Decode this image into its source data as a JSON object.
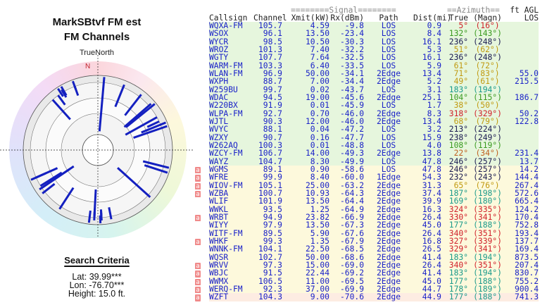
{
  "left": {
    "title1": "MarkSBtvf FM est",
    "title2": "FM Channels",
    "true_north": "TrueNorth",
    "north_label": "N",
    "criteria_title": "Search Criteria",
    "lat": "Lat: 39.99***",
    "lon": "Lon: -76.70***",
    "height": "Height: 15.0 ft."
  },
  "table": {
    "group_signal": "========Signal========",
    "group_azimuth": "==Azimuth==",
    "group_agl": "ft AGL",
    "headers": [
      "Callsign",
      "Channel",
      "Xmit(kW)",
      "Rx(dBm)",
      "Path",
      "Dist(mi)",
      "True",
      "(Magn)",
      "LOS"
    ],
    "badge_label": "a",
    "colors": {
      "green_row": "#e6f6dd",
      "yellow_row": "#fdf9dc",
      "pink_row": "#fdece2",
      "text": "#1a22c8",
      "badge": "#f08a8a"
    },
    "rows": [
      {
        "cs": "WQXA-FM",
        "ch": "105.7",
        "kw": "4.59",
        "rx": "-9.8",
        "path": "LOS",
        "dist": "0.9",
        "tru": "5°",
        "mag": "(16°)",
        "los": "",
        "badge": false,
        "bg": "g"
      },
      {
        "cs": "WSOX",
        "ch": "96.1",
        "kw": "13.50",
        "rx": "-23.4",
        "path": "LOS",
        "dist": "8.4",
        "tru": "132°",
        "mag": "(143°)",
        "los": "",
        "badge": false,
        "bg": "g"
      },
      {
        "cs": "WYCR",
        "ch": "98.5",
        "kw": "10.50",
        "rx": "-30.3",
        "path": "LOS",
        "dist": "16.1",
        "tru": "236°",
        "mag": "(248°)",
        "los": "",
        "badge": false,
        "bg": "g"
      },
      {
        "cs": "WROZ",
        "ch": "101.3",
        "kw": "7.40",
        "rx": "-32.2",
        "path": "LOS",
        "dist": "5.3",
        "tru": "51°",
        "mag": "(62°)",
        "los": "",
        "badge": false,
        "bg": "g"
      },
      {
        "cs": "WGTY",
        "ch": "107.7",
        "kw": "7.64",
        "rx": "-32.5",
        "path": "LOS",
        "dist": "16.1",
        "tru": "236°",
        "mag": "(248°)",
        "los": "",
        "badge": false,
        "bg": "g"
      },
      {
        "cs": "WARM-FM",
        "ch": "103.3",
        "kw": "6.40",
        "rx": "-33.5",
        "path": "LOS",
        "dist": "5.9",
        "tru": "61°",
        "mag": "(72°)",
        "los": "",
        "badge": false,
        "bg": "g"
      },
      {
        "cs": "WLAN-FM",
        "ch": "96.9",
        "kw": "50.00",
        "rx": "-34.1",
        "path": "2Edge",
        "dist": "13.4",
        "tru": "71°",
        "mag": "(83°)",
        "los": "55.0",
        "badge": false,
        "bg": "g"
      },
      {
        "cs": "WXPH",
        "ch": "88.7",
        "kw": "7.00",
        "rx": "-34.4",
        "path": "2Edge",
        "dist": "5.2",
        "tru": "49°",
        "mag": "(61°)",
        "los": "215.5",
        "badge": false,
        "bg": "g"
      },
      {
        "cs": "W259BU",
        "ch": "99.7",
        "kw": "0.02",
        "rx": "-43.7",
        "path": "LOS",
        "dist": "3.1",
        "tru": "183°",
        "mag": "(194°)",
        "los": "",
        "badge": false,
        "bg": "g"
      },
      {
        "cs": "WDAC",
        "ch": "94.5",
        "kw": "19.00",
        "rx": "-45.6",
        "path": "2Edge",
        "dist": "25.1",
        "tru": "104°",
        "mag": "(115°)",
        "los": "186.7",
        "badge": false,
        "bg": "g"
      },
      {
        "cs": "W220BX",
        "ch": "91.9",
        "kw": "0.01",
        "rx": "-45.9",
        "path": "LOS",
        "dist": "1.7",
        "tru": "38°",
        "mag": "(50°)",
        "los": "",
        "badge": false,
        "bg": "g"
      },
      {
        "cs": "WLPA-FM",
        "ch": "92.7",
        "kw": "0.70",
        "rx": "-46.0",
        "path": "2Edge",
        "dist": "8.3",
        "tru": "318°",
        "mag": "(329°)",
        "los": "50.2",
        "badge": false,
        "bg": "g"
      },
      {
        "cs": "WJTL",
        "ch": "90.3",
        "kw": "12.00",
        "rx": "-46.0",
        "path": "2Edge",
        "dist": "13.4",
        "tru": "68°",
        "mag": "(79°)",
        "los": "122.8",
        "badge": false,
        "bg": "g"
      },
      {
        "cs": "WVYC",
        "ch": "88.1",
        "kw": "0.04",
        "rx": "-47.2",
        "path": "LOS",
        "dist": "3.2",
        "tru": "213°",
        "mag": "(224°)",
        "los": "",
        "badge": false,
        "bg": "g"
      },
      {
        "cs": "WZXY",
        "ch": "90.7",
        "kw": "0.16",
        "rx": "-47.7",
        "path": "LOS",
        "dist": "15.9",
        "tru": "238°",
        "mag": "(249°)",
        "los": "",
        "badge": false,
        "bg": "g"
      },
      {
        "cs": "W262AQ",
        "ch": "100.3",
        "kw": "0.01",
        "rx": "-48.8",
        "path": "LOS",
        "dist": "4.0",
        "tru": "108°",
        "mag": "(119°)",
        "los": "",
        "badge": false,
        "bg": "g"
      },
      {
        "cs": "WZCY-FM",
        "ch": "106.7",
        "kw": "14.00",
        "rx": "-49.3",
        "path": "2Edge",
        "dist": "13.8",
        "tru": "22°",
        "mag": "(34°)",
        "los": "231.4",
        "badge": false,
        "bg": "g"
      },
      {
        "cs": "WAYZ",
        "ch": "104.7",
        "kw": "8.30",
        "rx": "-49.9",
        "path": "LOS",
        "dist": "47.8",
        "tru": "246°",
        "mag": "(257°)",
        "los": "13.7",
        "badge": false,
        "bg": "g"
      },
      {
        "cs": "WGMS",
        "ch": "89.1",
        "kw": "0.90",
        "rx": "-58.6",
        "path": "LOS",
        "dist": "47.8",
        "tru": "246°",
        "mag": "(257°)",
        "los": "14.2",
        "badge": true,
        "bg": "y"
      },
      {
        "cs": "WFRE",
        "ch": "99.9",
        "kw": "8.40",
        "rx": "-60.0",
        "path": "1Edge",
        "dist": "54.3",
        "tru": "232°",
        "mag": "(243°)",
        "los": "144.4",
        "badge": true,
        "bg": "y"
      },
      {
        "cs": "WIOV-FM",
        "ch": "105.1",
        "kw": "25.00",
        "rx": "-63.2",
        "path": "2Edge",
        "dist": "31.3",
        "tru": "65°",
        "mag": "(76°)",
        "los": "267.4",
        "badge": true,
        "bg": "y"
      },
      {
        "cs": "WZBA",
        "ch": "100.7",
        "kw": "10.93",
        "rx": "-64.3",
        "path": "2Edge",
        "dist": "37.4",
        "tru": "187°",
        "mag": "(198°)",
        "los": "572.6",
        "badge": true,
        "bg": "y"
      },
      {
        "cs": "WLIF",
        "ch": "101.9",
        "kw": "13.50",
        "rx": "-64.4",
        "path": "2Edge",
        "dist": "39.9",
        "tru": "169°",
        "mag": "(180°)",
        "los": "665.4",
        "badge": false,
        "bg": "y"
      },
      {
        "cs": "WWKL",
        "ch": "93.5",
        "kw": "1.25",
        "rx": "-64.9",
        "path": "2Edge",
        "dist": "16.3",
        "tru": "324°",
        "mag": "(335°)",
        "los": "124.2",
        "badge": false,
        "bg": "y"
      },
      {
        "cs": "WRBT",
        "ch": "94.9",
        "kw": "23.82",
        "rx": "-66.9",
        "path": "2Edge",
        "dist": "26.4",
        "tru": "330°",
        "mag": "(341°)",
        "los": "170.4",
        "badge": true,
        "bg": "y"
      },
      {
        "cs": "WIYY",
        "ch": "97.9",
        "kw": "13.50",
        "rx": "-67.3",
        "path": "2Edge",
        "dist": "45.0",
        "tru": "177°",
        "mag": "(188°)",
        "los": "752.8",
        "badge": false,
        "bg": "y"
      },
      {
        "cs": "WITF-FM",
        "ch": "89.5",
        "kw": "5.90",
        "rx": "-67.6",
        "path": "2Edge",
        "dist": "26.4",
        "tru": "340°",
        "mag": "(351°)",
        "los": "193.4",
        "badge": false,
        "bg": "y"
      },
      {
        "cs": "WHKF",
        "ch": "99.3",
        "kw": "1.35",
        "rx": "-67.9",
        "path": "2Edge",
        "dist": "16.8",
        "tru": "327°",
        "mag": "(339°)",
        "los": "137.7",
        "badge": true,
        "bg": "y"
      },
      {
        "cs": "WNNK-FM",
        "ch": "104.1",
        "kw": "22.50",
        "rx": "-68.5",
        "path": "2Edge",
        "dist": "26.5",
        "tru": "329°",
        "mag": "(341°)",
        "los": "169.4",
        "badge": false,
        "bg": "y"
      },
      {
        "cs": "WQSR",
        "ch": "102.7",
        "kw": "50.00",
        "rx": "-68.6",
        "path": "2Edge",
        "dist": "41.4",
        "tru": "183°",
        "mag": "(194°)",
        "los": "873.5",
        "badge": false,
        "bg": "y"
      },
      {
        "cs": "WRVV",
        "ch": "97.3",
        "kw": "15.00",
        "rx": "-69.0",
        "path": "2Edge",
        "dist": "26.4",
        "tru": "340°",
        "mag": "(351°)",
        "los": "207.4",
        "badge": true,
        "bg": "y"
      },
      {
        "cs": "WBJC",
        "ch": "91.5",
        "kw": "22.44",
        "rx": "-69.2",
        "path": "2Edge",
        "dist": "41.4",
        "tru": "183°",
        "mag": "(194°)",
        "los": "830.7",
        "badge": true,
        "bg": "y"
      },
      {
        "cs": "WWMX",
        "ch": "106.5",
        "kw": "11.00",
        "rx": "-69.5",
        "path": "2Edge",
        "dist": "45.0",
        "tru": "177°",
        "mag": "(188°)",
        "los": "755.2",
        "badge": true,
        "bg": "y"
      },
      {
        "cs": "WERQ-FM",
        "ch": "92.3",
        "kw": "37.00",
        "rx": "-69.9",
        "path": "2Edge",
        "dist": "44.7",
        "tru": "178°",
        "mag": "(189°)",
        "los": "900.4",
        "badge": true,
        "bg": "y"
      },
      {
        "cs": "WZFT",
        "ch": "104.3",
        "kw": "9.00",
        "rx": "-70.6",
        "path": "2Edge",
        "dist": "44.9",
        "tru": "177°",
        "mag": "(188°)",
        "los": "741.3",
        "badge": true,
        "bg": "p"
      }
    ]
  }
}
